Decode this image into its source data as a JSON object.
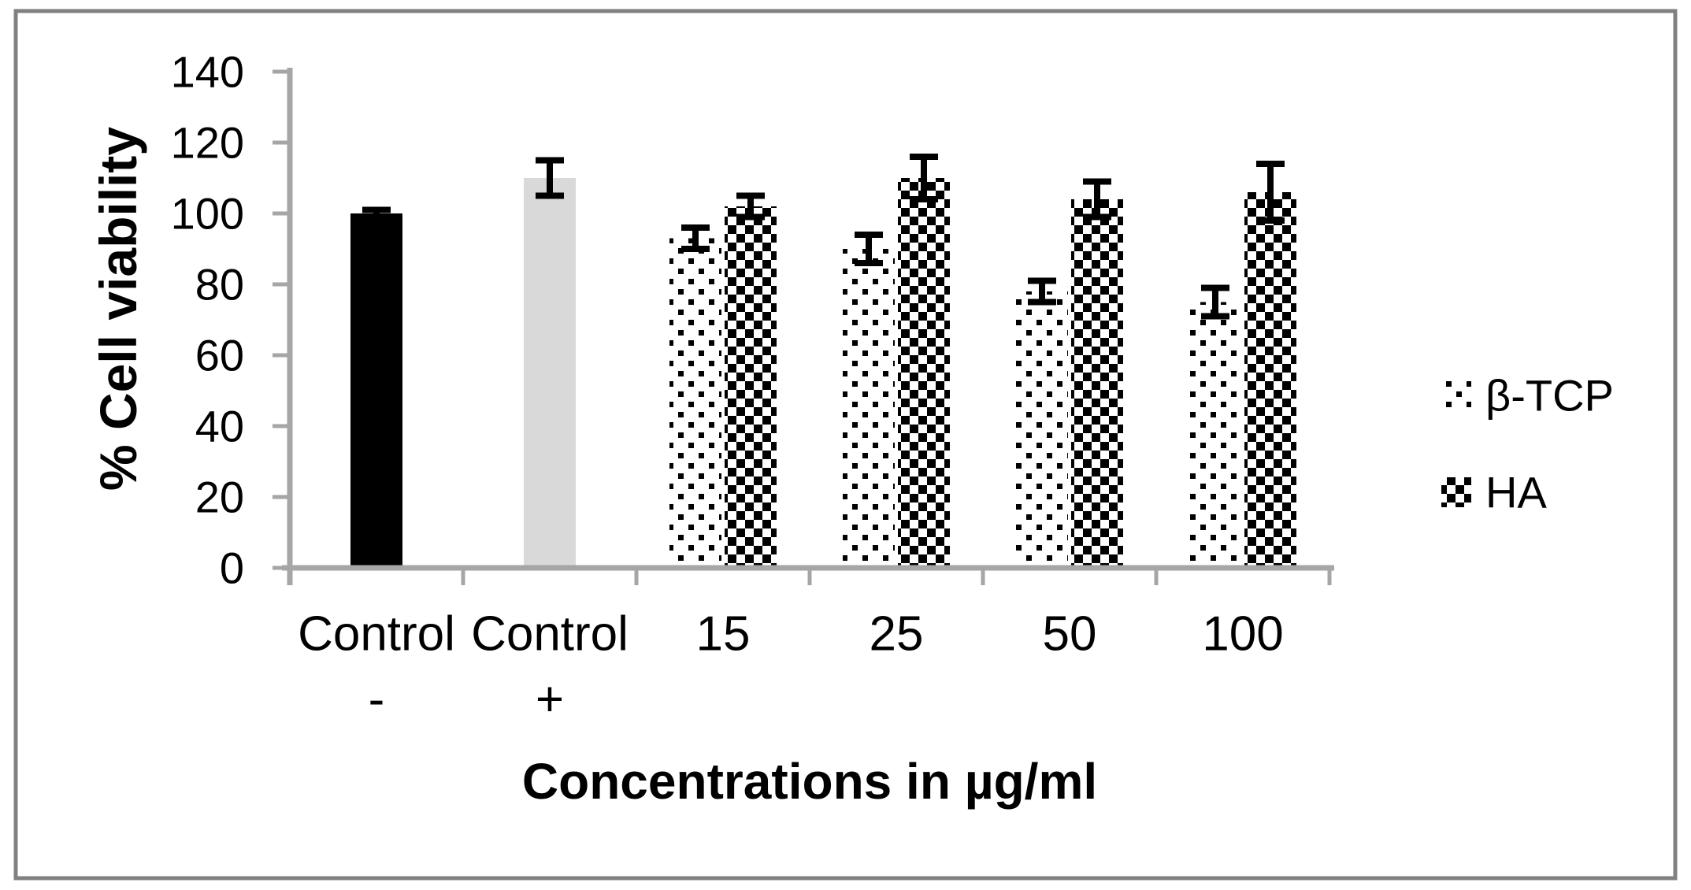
{
  "figure": {
    "background_color": "#ffffff",
    "border_color": "#808080"
  },
  "chart_data": {
    "type": "bar",
    "title": "",
    "ylabel": "% Cell viability",
    "xlabel": "Concentrations in µg/ml",
    "ylim": [
      0,
      140
    ],
    "ytick_interval": 20,
    "yticks": [
      0,
      20,
      40,
      60,
      80,
      100,
      120,
      140
    ],
    "grid": false,
    "legend_position": "middle-right",
    "categories": [
      "Control -",
      "Control +",
      "15",
      "25",
      "50",
      "100"
    ],
    "control_bars": [
      {
        "name": "control-negative",
        "label_line1": "Control",
        "label_line2": "-",
        "value": 100,
        "error": 1,
        "fill": "solid",
        "color": "#000000"
      },
      {
        "name": "control-positive",
        "label_line1": "Control",
        "label_line2": "+",
        "value": 110,
        "error": 5,
        "fill": "solid",
        "color": "#d9d9d9"
      }
    ],
    "group_categories": [
      "15",
      "25",
      "50",
      "100"
    ],
    "series": [
      {
        "name": "β-TCP",
        "pattern": "dots",
        "values": [
          93,
          90,
          78,
          75
        ],
        "errors": [
          3,
          4,
          3,
          4
        ]
      },
      {
        "name": "HA",
        "pattern": "checker",
        "values": [
          102,
          110,
          104,
          106
        ],
        "errors": [
          3,
          6,
          5,
          8
        ]
      }
    ],
    "colors": {
      "axis": "#a6a6a6",
      "error_bar": "#000000",
      "pattern_foreground": "#000000",
      "pattern_background": "#ffffff",
      "control_negative": "#000000",
      "control_positive": "#d9d9d9"
    }
  }
}
